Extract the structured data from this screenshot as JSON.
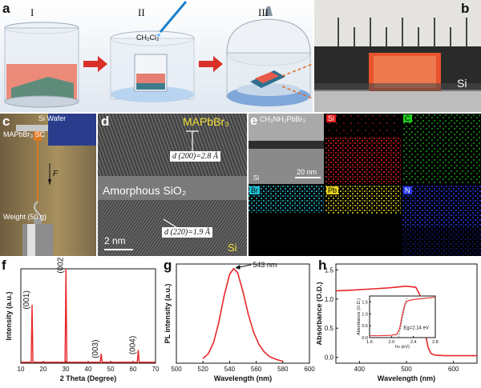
{
  "panels": {
    "a": {
      "letter": "a",
      "steps": [
        "I",
        "II",
        "III"
      ],
      "solvent": "CH₂Cl₂"
    },
    "b": {
      "letter": "b",
      "substrate": "Si"
    },
    "c": {
      "letter": "c",
      "wafer": "Si Wafer",
      "crystal": "MAPbBr₃ SC",
      "force": "F",
      "weight": "Weight (50 g)"
    },
    "d": {
      "letter": "d",
      "top": "MAPbBr₃",
      "d1": "d (200)=2.8 Å",
      "middle": "Amorphous SiO₂",
      "d2": "d (220)=1.9 Å",
      "scale": "2 nm",
      "bottom": "Si"
    },
    "e": {
      "letter": "e",
      "overview": "CH₃NH₃PbBr₃",
      "overview_si": "Si",
      "scale": "20 nm",
      "maps": [
        "Si",
        "C",
        "Br",
        "Pb",
        "N"
      ]
    },
    "f": {
      "letter": "f"
    },
    "g": {
      "letter": "g"
    },
    "h": {
      "letter": "h"
    }
  },
  "colors": {
    "curve": "#e8262a",
    "si_map": "#e31d1d",
    "c_map": "#1fcf1f",
    "br_map": "#21c6d8",
    "pb_map": "#e3d51c",
    "n_map": "#2a3cf0",
    "arrow": "#d9302a"
  },
  "chart_data": [
    {
      "id": "f",
      "type": "line",
      "title": "",
      "xlabel": "2 Theta (Degree)",
      "ylabel": "Intensity (a.u.)",
      "xlim": [
        10,
        70
      ],
      "xticks": [
        10,
        20,
        30,
        40,
        50,
        60,
        70
      ],
      "ylim": [
        0,
        1
      ],
      "peaks": [
        {
          "x": 15.0,
          "y": 0.62,
          "label": "(001)"
        },
        {
          "x": 30.1,
          "y": 1.0,
          "label": "(002)"
        },
        {
          "x": 45.8,
          "y": 0.1,
          "label": "(003)"
        },
        {
          "x": 62.3,
          "y": 0.14,
          "label": "(004)"
        }
      ]
    },
    {
      "id": "g",
      "type": "line",
      "title": "",
      "xlabel": "Wavelength (nm)",
      "ylabel": "PL intensity (a.u.)",
      "xlim": [
        500,
        600
      ],
      "xticks": [
        500,
        520,
        540,
        560,
        580,
        600
      ],
      "peak_label": "543 nm",
      "series": [
        {
          "name": "PL",
          "x": [
            520,
            524,
            528,
            532,
            536,
            540,
            543,
            546,
            550,
            554,
            558,
            562,
            566,
            570,
            575,
            580
          ],
          "y": [
            0.05,
            0.1,
            0.22,
            0.44,
            0.72,
            0.94,
            1.0,
            0.96,
            0.76,
            0.52,
            0.33,
            0.2,
            0.12,
            0.07,
            0.04,
            0.02
          ]
        }
      ]
    },
    {
      "id": "h",
      "type": "line",
      "title": "",
      "xlabel": "Wavelength (nm)",
      "ylabel": "Absorbance (O.D.)",
      "xlim": [
        350,
        650
      ],
      "xticks": [
        400,
        500,
        600
      ],
      "ylim": [
        -0.1,
        1.6
      ],
      "yticks": [
        0.0,
        0.5,
        1.0,
        1.5
      ],
      "series": [
        {
          "name": "Absorbance",
          "x": [
            350,
            380,
            420,
            460,
            500,
            520,
            528,
            534,
            540,
            546,
            552,
            560,
            580,
            600,
            620,
            650
          ],
          "y": [
            1.14,
            1.15,
            1.17,
            1.19,
            1.22,
            1.2,
            1.08,
            0.78,
            0.42,
            0.17,
            0.07,
            0.04,
            0.03,
            0.03,
            0.03,
            0.03
          ]
        }
      ],
      "inset": {
        "xlabel": "hν (eV)",
        "ylabel": "Absorbance (O.D.)",
        "xlim": [
          1.6,
          2.8
        ],
        "xticks": [
          1.6,
          2.0,
          2.4,
          2.8
        ],
        "ylim": [
          0.0,
          1.75
        ],
        "yticks": [
          0.0,
          0.5,
          1.0,
          1.5
        ],
        "annotation": "Eg=2.14 eV",
        "series": {
          "x": [
            1.6,
            1.8,
            2.0,
            2.1,
            2.15,
            2.2,
            2.25,
            2.3,
            2.4,
            2.6,
            2.8
          ],
          "y": [
            0.08,
            0.08,
            0.1,
            0.14,
            0.4,
            1.0,
            1.45,
            1.55,
            1.6,
            1.65,
            1.7
          ]
        },
        "fit": {
          "x": [
            2.13,
            2.28
          ],
          "y": [
            0.0,
            1.7
          ]
        }
      }
    }
  ]
}
